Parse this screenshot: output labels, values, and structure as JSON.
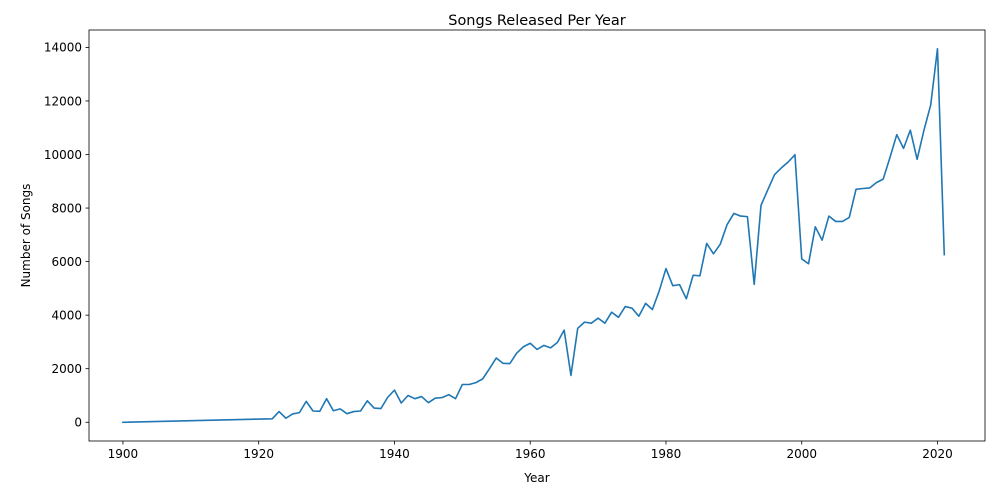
{
  "chart_data": {
    "type": "line",
    "title": "Songs Released Per Year",
    "xlabel": "Year",
    "ylabel": "Number of Songs",
    "xlim": [
      1895,
      2027
    ],
    "ylim": [
      -700,
      14650
    ],
    "xticks": [
      1900,
      1920,
      1940,
      1960,
      1980,
      2000,
      2020
    ],
    "yticks": [
      0,
      2000,
      4000,
      6000,
      8000,
      10000,
      12000,
      14000
    ],
    "grid": false,
    "legend": "none",
    "series": [
      {
        "color": "#1f77b4",
        "x": [
          1900,
          1922,
          1923,
          1924,
          1925,
          1926,
          1927,
          1928,
          1929,
          1930,
          1931,
          1932,
          1933,
          1934,
          1935,
          1936,
          1937,
          1938,
          1939,
          1940,
          1941,
          1942,
          1943,
          1944,
          1945,
          1946,
          1947,
          1948,
          1949,
          1950,
          1951,
          1952,
          1953,
          1954,
          1955,
          1956,
          1957,
          1958,
          1959,
          1960,
          1961,
          1962,
          1963,
          1964,
          1965,
          1966,
          1967,
          1968,
          1969,
          1970,
          1971,
          1972,
          1973,
          1974,
          1975,
          1976,
          1977,
          1978,
          1979,
          1980,
          1981,
          1982,
          1983,
          1984,
          1985,
          1986,
          1987,
          1988,
          1989,
          1990,
          1991,
          1992,
          1993,
          1994,
          1995,
          1996,
          1997,
          1998,
          1999,
          2000,
          2001,
          2002,
          2003,
          2004,
          2005,
          2006,
          2007,
          2008,
          2009,
          2010,
          2011,
          2012,
          2013,
          2014,
          2015,
          2016,
          2017,
          2018,
          2019,
          2020,
          2021
        ],
        "y": [
          0,
          130,
          400,
          150,
          310,
          360,
          780,
          420,
          410,
          880,
          430,
          500,
          320,
          400,
          420,
          800,
          530,
          510,
          930,
          1200,
          720,
          1000,
          880,
          960,
          730,
          900,
          920,
          1030,
          880,
          1410,
          1410,
          1480,
          1620,
          2000,
          2400,
          2200,
          2190,
          2580,
          2820,
          2950,
          2720,
          2870,
          2780,
          2980,
          3440,
          1750,
          3510,
          3740,
          3700,
          3890,
          3700,
          4110,
          3920,
          4320,
          4260,
          3960,
          4440,
          4210,
          4900,
          5740,
          5100,
          5140,
          4610,
          5490,
          5470,
          6680,
          6290,
          6650,
          7380,
          7800,
          7700,
          7680,
          5150,
          8100,
          8680,
          9250,
          9500,
          9720,
          9990,
          6100,
          5920,
          7300,
          6800,
          7700,
          7500,
          7500,
          7650,
          8700,
          8730,
          8750,
          8950,
          9080,
          9890,
          10740,
          10230,
          10910,
          9820,
          10900,
          11850,
          13950,
          6260
        ]
      }
    ]
  }
}
